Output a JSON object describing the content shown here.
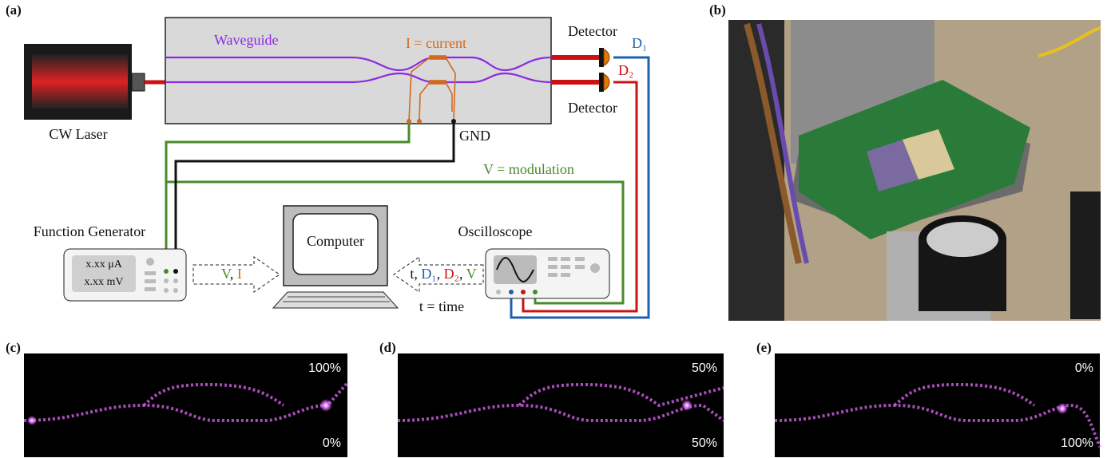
{
  "panel_labels": [
    "(a)",
    "(b)",
    "(c)",
    "(d)",
    "(e)"
  ],
  "setup": {
    "waveguide": "Waveguide",
    "current": "I = current",
    "detector_top": "Detector",
    "detector_bottom": "Detector",
    "d1": "D₁",
    "d2": "D₂",
    "laser": "CW Laser",
    "ground": "GND",
    "modulation": "V = modulation",
    "function_generator": {
      "title": "Function Generator",
      "display": [
        "x.xx μA",
        "x.xx mV"
      ]
    },
    "computer": "Computer",
    "oscilloscope": "Oscilloscope",
    "inputs_from_generator": [
      "V",
      ", ",
      "I"
    ],
    "inputs_from_oscilloscope": [
      "t, ",
      "D₁",
      ", ",
      "D₂",
      ", ",
      "V"
    ],
    "time": "t = time"
  },
  "images": [
    {
      "top": "100%",
      "bottom": "0%"
    },
    {
      "top": "50%",
      "bottom": "50%"
    },
    {
      "top": "0%",
      "bottom": "100%"
    }
  ]
}
